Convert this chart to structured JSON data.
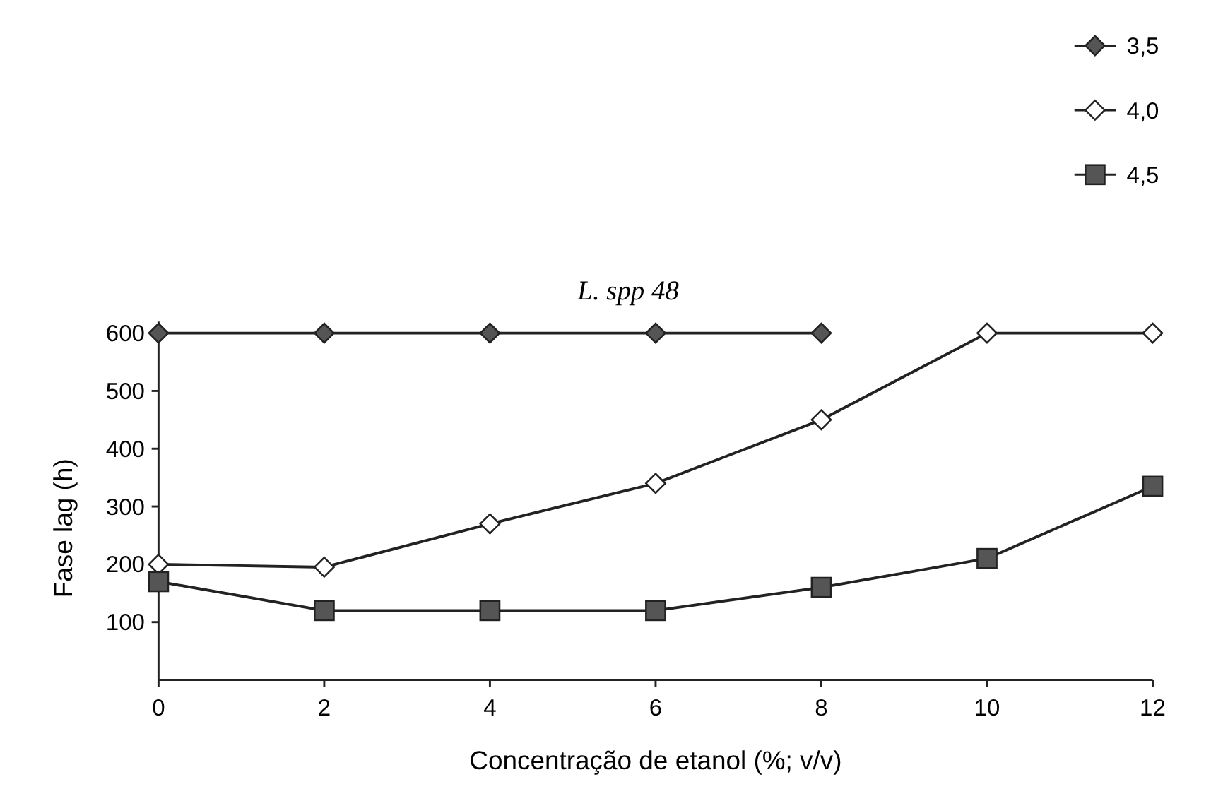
{
  "chart_data": {
    "type": "line",
    "title": "L. spp 48",
    "xlabel": "Concentração de etanol (%; v/v)",
    "ylabel": "Fase lag (h)",
    "x": [
      0,
      2,
      4,
      6,
      8,
      10,
      12
    ],
    "xlim": [
      0,
      12
    ],
    "xticks": [
      0,
      2,
      4,
      6,
      8,
      10,
      12
    ],
    "ylim": [
      0,
      620
    ],
    "yticks": [
      100,
      200,
      300,
      400,
      500,
      600
    ],
    "grid": false,
    "legend": "top right",
    "series": [
      {
        "name": "3,5",
        "color": "#555555",
        "marker": "diamond",
        "values": [
          600,
          600,
          600,
          600,
          600,
          null,
          null
        ]
      },
      {
        "name": "4,0",
        "color": "#ffffff",
        "marker": "diamond",
        "values": [
          200,
          195,
          270,
          340,
          450,
          600,
          600
        ]
      },
      {
        "name": "4,5",
        "color": "#555555",
        "marker": "square",
        "values": [
          170,
          120,
          120,
          120,
          160,
          210,
          335
        ]
      }
    ]
  }
}
